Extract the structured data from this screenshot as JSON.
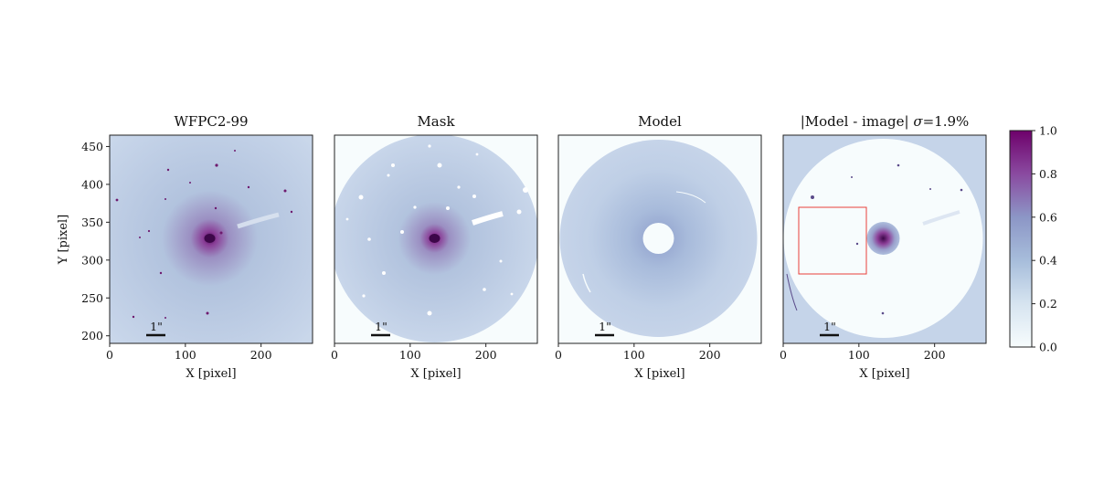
{
  "chart_data": [
    {
      "type": "heatmap",
      "title": "WFPC2-99",
      "xlabel": "X [pixel]",
      "ylabel": "Y [pixel]",
      "xlim": [
        0,
        268
      ],
      "ylim": [
        190,
        465
      ],
      "xticks": [
        0,
        100,
        200
      ],
      "yticks": [
        200,
        250,
        300,
        350,
        400,
        450
      ],
      "scalebar_label": "1\"",
      "content": "galaxy image",
      "center": [
        132,
        328
      ]
    },
    {
      "type": "heatmap",
      "title": "Mask",
      "xlabel": "X [pixel]",
      "xlim": [
        0,
        268
      ],
      "ylim": [
        190,
        465
      ],
      "xticks": [
        0,
        100,
        200
      ],
      "scalebar_label": "1\"",
      "content": "masked image",
      "center": [
        132,
        328
      ]
    },
    {
      "type": "heatmap",
      "title": "Model",
      "xlabel": "X [pixel]",
      "xlim": [
        0,
        268
      ],
      "ylim": [
        190,
        465
      ],
      "xticks": [
        0,
        100,
        200
      ],
      "scalebar_label": "1\"",
      "content": "model annulus",
      "center": [
        132,
        328
      ]
    },
    {
      "type": "heatmap",
      "title_prefix": "|Model - image| ",
      "title_sigma": "σ",
      "title_suffix": "=1.9%",
      "xlabel": "X [pixel]",
      "xlim": [
        0,
        268
      ],
      "ylim": [
        190,
        465
      ],
      "xticks": [
        0,
        100,
        200
      ],
      "scalebar_label": "1\"",
      "content": "residual",
      "center": [
        132,
        328
      ],
      "highlight_box": {
        "x0": 22,
        "x1": 110,
        "y0": 280,
        "y1": 370,
        "color": "#e8413a"
      }
    }
  ],
  "colorbar": {
    "ticks": [
      "1.0",
      "0.8",
      "0.6",
      "0.4",
      "0.2",
      "0.0"
    ],
    "range": [
      0,
      1
    ],
    "colors": [
      "#f7fcfd",
      "#bfd3e6",
      "#8c96c6",
      "#8c6bb1",
      "#88419d",
      "#6e016b"
    ]
  }
}
